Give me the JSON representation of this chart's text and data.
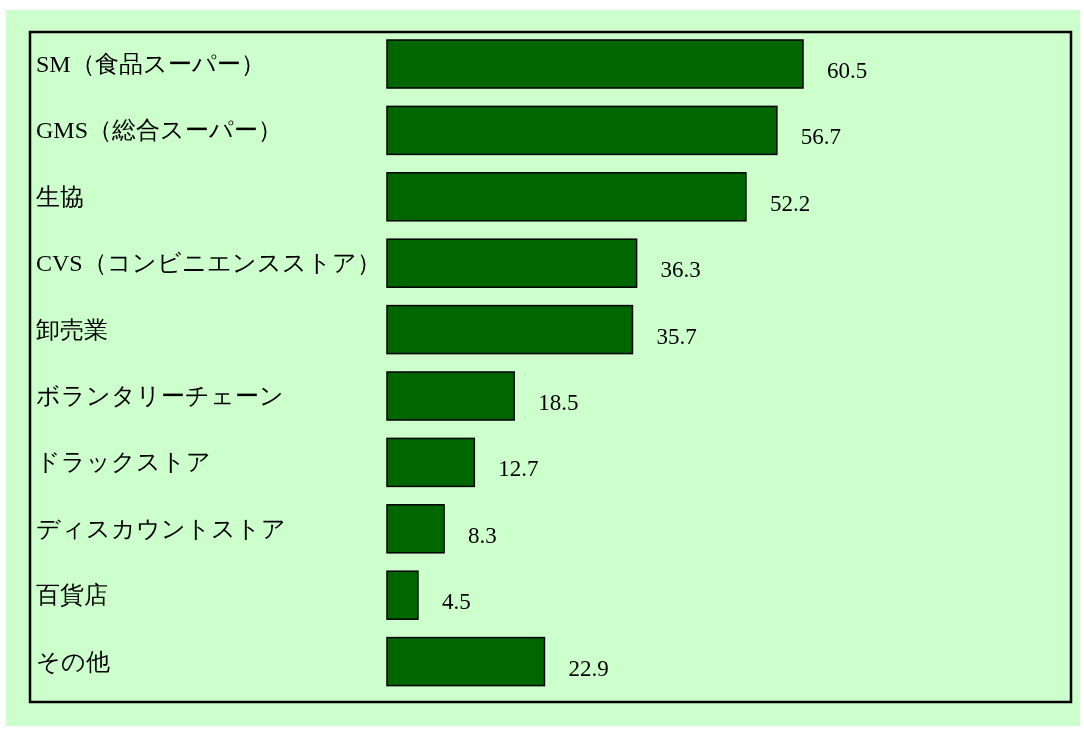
{
  "chart_data": {
    "type": "bar",
    "orientation": "horizontal",
    "categories": [
      "SM（食品スーパー）",
      "GMS（総合スーパー）",
      "生協",
      "CVS（コンビニエンスストア）",
      "卸売業",
      "ボランタリーチェーン",
      "ドラックストア",
      "ディスカウントストア",
      "百貨店",
      "その他"
    ],
    "values": [
      60.5,
      56.7,
      52.2,
      36.3,
      35.7,
      18.5,
      12.7,
      8.3,
      4.5,
      22.9
    ],
    "color": "#006600",
    "data_labels": true
  }
}
